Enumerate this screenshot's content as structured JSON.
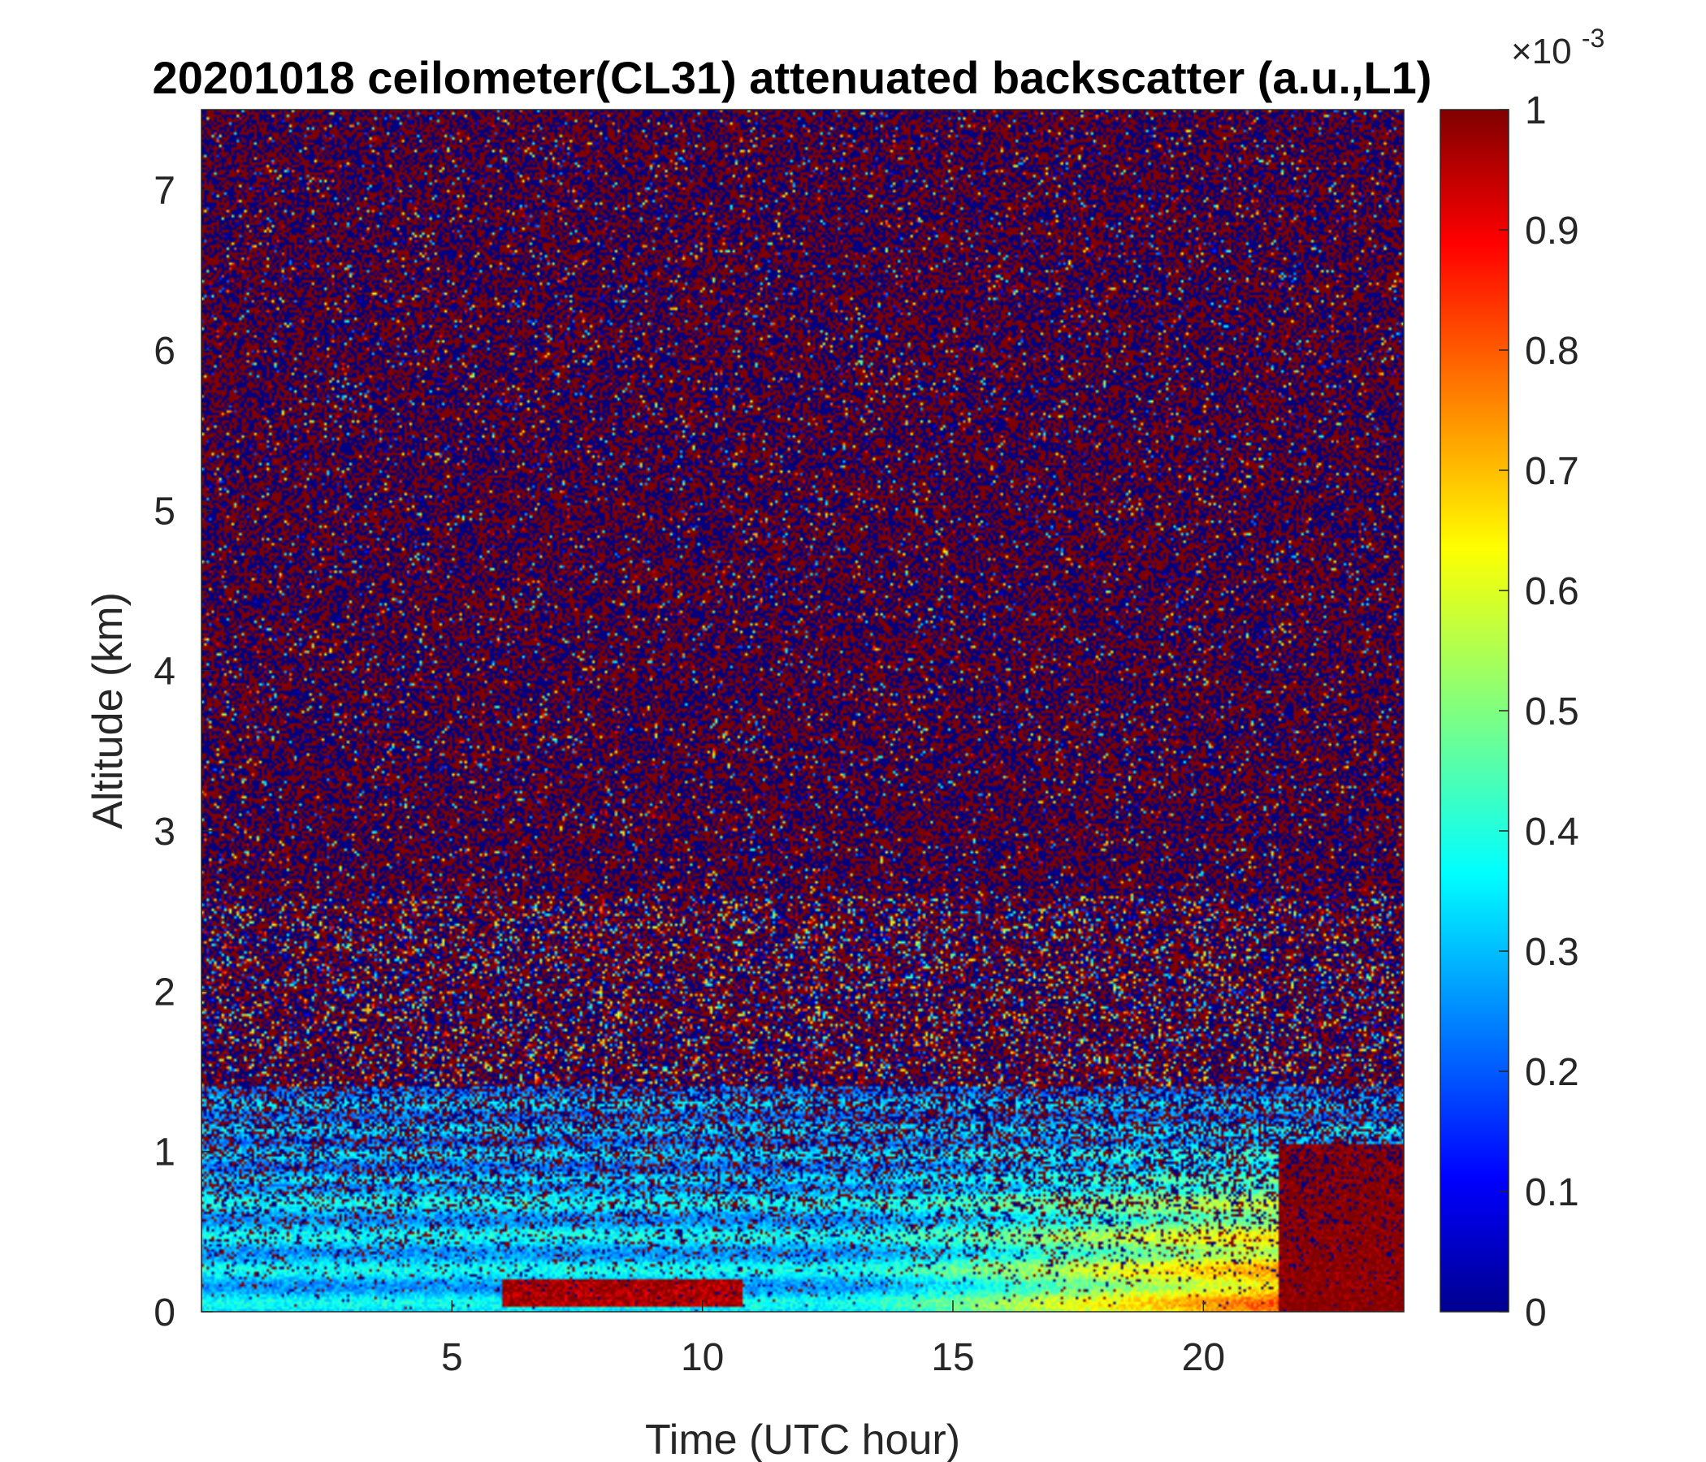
{
  "chart_data": {
    "type": "heatmap",
    "title": "20201018 ceilometer(CL31) attenuated backscatter (a.u.,L1)",
    "xlabel": "Time (UTC hour)",
    "ylabel": "Altitude (km)",
    "xlim": [
      0,
      24
    ],
    "ylim": [
      0,
      7.5
    ],
    "xticks": [
      5,
      10,
      15,
      20
    ],
    "yticks": [
      0,
      1,
      2,
      3,
      4,
      5,
      6,
      7
    ],
    "colorbar": {
      "min": 0,
      "max": 1,
      "ticks": [
        0,
        0.1,
        0.2,
        0.3,
        0.4,
        0.5,
        0.6,
        0.7,
        0.8,
        0.9,
        1
      ],
      "exponent_base": "×10",
      "exponent_power": "-3",
      "colormap": "jet"
    },
    "description_features": {
      "aloft_noise_range": [
        0,
        1
      ],
      "boundary_layer_top_km": [
        0.9,
        1.1
      ],
      "strong_layer_hours": [
        6,
        10.5
      ],
      "strong_layer_altitude_km": [
        0.05,
        0.2
      ],
      "saturated_region_hours": [
        21.5,
        24
      ],
      "saturated_region_top_km": 1.05
    },
    "colors": {
      "jet_low": "#00008f",
      "jet_high": "#800000"
    }
  }
}
